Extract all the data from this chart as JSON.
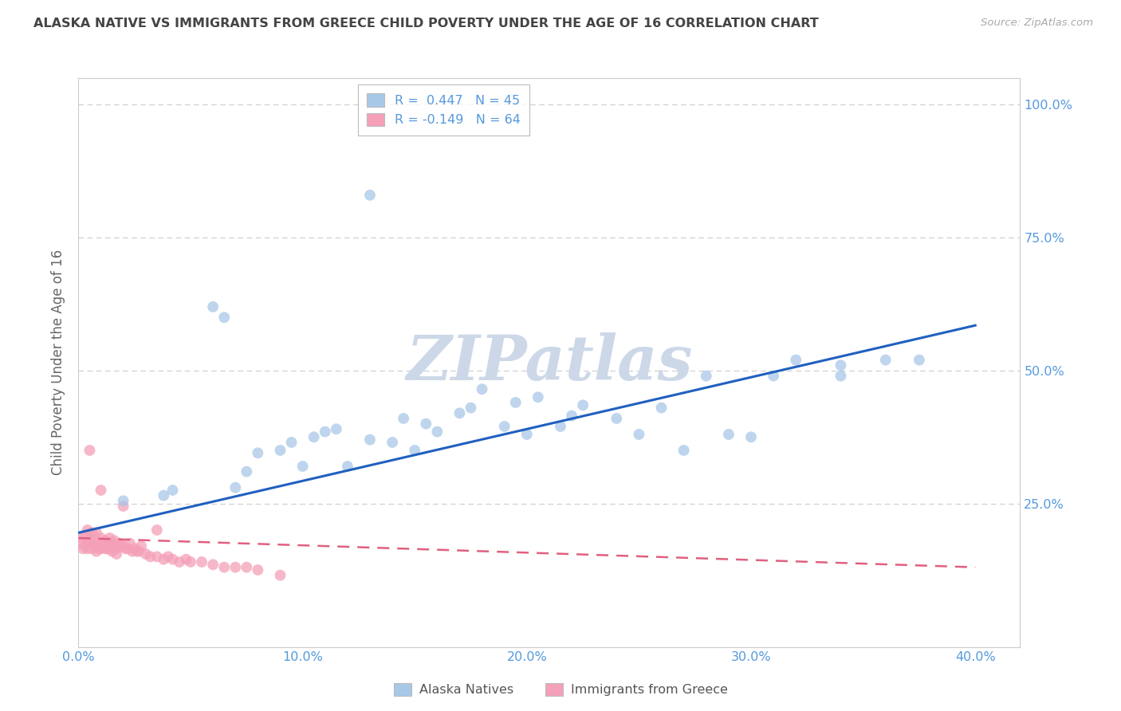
{
  "title": "ALASKA NATIVE VS IMMIGRANTS FROM GREECE CHILD POVERTY UNDER THE AGE OF 16 CORRELATION CHART",
  "source": "Source: ZipAtlas.com",
  "ylabel": "Child Poverty Under the Age of 16",
  "watermark": "ZIPatlas",
  "legend_r1": "R =  0.447   N = 45",
  "legend_r2": "R = -0.149   N = 64",
  "legend_label1": "Alaska Natives",
  "legend_label2": "Immigrants from Greece",
  "blue_color": "#a8c8e8",
  "pink_color": "#f4a0b8",
  "blue_line_color": "#2060c0",
  "pink_line_color": "#e06080",
  "title_color": "#444444",
  "source_color": "#aaaaaa",
  "grid_color": "#cccccc",
  "axis_label_color": "#666666",
  "tick_color": "#5599dd",
  "watermark_color": "#ccd8e8",
  "xlim": [
    0.0,
    0.42
  ],
  "ylim": [
    -0.02,
    1.05
  ],
  "xticks": [
    0.0,
    0.1,
    0.2,
    0.3,
    0.4
  ],
  "yticks": [
    0.0,
    0.25,
    0.5,
    0.75,
    1.0
  ],
  "blue_x": [
    0.02,
    0.038,
    0.042,
    0.06,
    0.065,
    0.07,
    0.075,
    0.08,
    0.09,
    0.095,
    0.1,
    0.105,
    0.11,
    0.115,
    0.12,
    0.13,
    0.14,
    0.145,
    0.15,
    0.155,
    0.16,
    0.17,
    0.175,
    0.18,
    0.19,
    0.195,
    0.2,
    0.205,
    0.215,
    0.22,
    0.225,
    0.24,
    0.25,
    0.26,
    0.27,
    0.28,
    0.29,
    0.3,
    0.31,
    0.32,
    0.34,
    0.36,
    0.13,
    0.34,
    0.375
  ],
  "blue_y": [
    0.255,
    0.265,
    0.275,
    0.62,
    0.6,
    0.28,
    0.31,
    0.345,
    0.35,
    0.365,
    0.32,
    0.375,
    0.385,
    0.39,
    0.32,
    0.37,
    0.365,
    0.41,
    0.35,
    0.4,
    0.385,
    0.42,
    0.43,
    0.465,
    0.395,
    0.44,
    0.38,
    0.45,
    0.395,
    0.415,
    0.435,
    0.41,
    0.38,
    0.43,
    0.35,
    0.49,
    0.38,
    0.375,
    0.49,
    0.52,
    0.49,
    0.52,
    0.83,
    0.51,
    0.52
  ],
  "pink_x": [
    0.001,
    0.002,
    0.002,
    0.003,
    0.003,
    0.004,
    0.004,
    0.005,
    0.005,
    0.006,
    0.006,
    0.007,
    0.007,
    0.008,
    0.008,
    0.009,
    0.009,
    0.01,
    0.01,
    0.011,
    0.011,
    0.012,
    0.012,
    0.013,
    0.013,
    0.014,
    0.014,
    0.015,
    0.015,
    0.016,
    0.016,
    0.017,
    0.017,
    0.018,
    0.019,
    0.02,
    0.021,
    0.022,
    0.023,
    0.024,
    0.025,
    0.026,
    0.027,
    0.028,
    0.03,
    0.032,
    0.035,
    0.038,
    0.04,
    0.042,
    0.045,
    0.048,
    0.05,
    0.055,
    0.06,
    0.065,
    0.07,
    0.075,
    0.08,
    0.09,
    0.005,
    0.01,
    0.02,
    0.035
  ],
  "pink_y": [
    0.175,
    0.185,
    0.165,
    0.19,
    0.17,
    0.2,
    0.165,
    0.185,
    0.175,
    0.195,
    0.165,
    0.18,
    0.17,
    0.195,
    0.16,
    0.175,
    0.165,
    0.185,
    0.165,
    0.175,
    0.17,
    0.18,
    0.165,
    0.175,
    0.165,
    0.185,
    0.165,
    0.175,
    0.16,
    0.18,
    0.165,
    0.165,
    0.155,
    0.175,
    0.17,
    0.17,
    0.165,
    0.165,
    0.175,
    0.16,
    0.165,
    0.16,
    0.16,
    0.17,
    0.155,
    0.15,
    0.15,
    0.145,
    0.15,
    0.145,
    0.14,
    0.145,
    0.14,
    0.14,
    0.135,
    0.13,
    0.13,
    0.13,
    0.125,
    0.115,
    0.35,
    0.275,
    0.245,
    0.2
  ],
  "blue_line_x": [
    0.0,
    0.4
  ],
  "blue_line_y": [
    0.195,
    0.585
  ],
  "pink_line_x": [
    0.0,
    0.4
  ],
  "pink_line_y": [
    0.185,
    0.13
  ]
}
